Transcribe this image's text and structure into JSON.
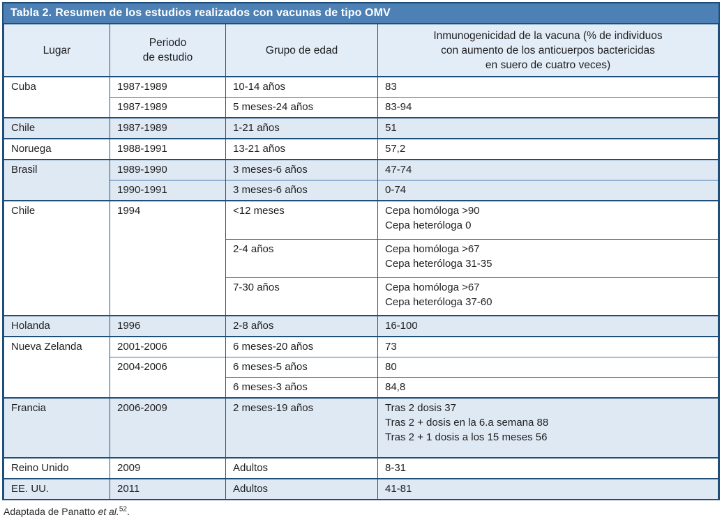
{
  "title": {
    "label": "Tabla 2.",
    "text": "Resumen de los estudios realizados con vacunas de tipo OMV"
  },
  "header": {
    "lugar": "Lugar",
    "periodo": "Periodo\nde estudio",
    "grupo": "Grupo de edad",
    "inmunogenicidad": "Inmunogenicidad de la vacuna (% de individuos\ncon aumento de los anticuerpos bactericidas\nen suero de cuatro veces)"
  },
  "rows": [
    {
      "lugar": "Cuba",
      "periodo": "1987-1989",
      "grupo": "10-14 años",
      "inmunogenicidad": "83"
    },
    {
      "periodo": "1987-1989",
      "grupo": "5 meses-24 años",
      "inmunogenicidad": "83-94"
    },
    {
      "lugar": "Chile",
      "periodo": "1987-1989",
      "grupo": "1-21 años",
      "inmunogenicidad": "51"
    },
    {
      "lugar": "Noruega",
      "periodo": "1988-1991",
      "grupo": "13-21 años",
      "inmunogenicidad": "57,2"
    },
    {
      "lugar": "Brasil",
      "periodo": "1989-1990",
      "grupo": "3 meses-6 años",
      "inmunogenicidad": "47-74"
    },
    {
      "periodo": "1990-1991",
      "grupo": "3 meses-6 años",
      "inmunogenicidad": "0-74"
    },
    {
      "lugar": "Chile",
      "periodo": "1994",
      "grupo": "<12 meses",
      "inmunogenicidad": "Cepa homóloga >90\nCepa heteróloga 0"
    },
    {
      "grupo": "2-4 años",
      "inmunogenicidad": "Cepa homóloga >67\nCepa heteróloga 31-35"
    },
    {
      "grupo": "7-30 años",
      "inmunogenicidad": "Cepa homóloga >67\nCepa heteróloga 37-60"
    },
    {
      "lugar": "Holanda",
      "periodo": "1996",
      "grupo": "2-8 años",
      "inmunogenicidad": "16-100"
    },
    {
      "lugar": "Nueva Zelanda",
      "periodo": "2001-2006",
      "grupo": "6 meses-20 años",
      "inmunogenicidad": "73"
    },
    {
      "periodo": "2004-2006",
      "grupo": "6 meses-5 años",
      "inmunogenicidad": "80"
    },
    {
      "grupo": "6 meses-3 años",
      "inmunogenicidad": "84,8"
    },
    {
      "lugar": "Francia",
      "periodo": "2006-2009",
      "grupo": "2 meses-19 años",
      "inmunogenicidad": "Tras 2 dosis 37\nTras 2 + dosis en la 6.a semana 88\nTras 2 + 1 dosis a los 15 meses 56"
    },
    {
      "lugar": "Reino Unido",
      "periodo": "2009",
      "grupo": "Adultos",
      "inmunogenicidad": "8-31"
    },
    {
      "lugar": "EE. UU.",
      "periodo": "2011",
      "grupo": "Adultos",
      "inmunogenicidad": "41-81"
    }
  ],
  "footer": {
    "prefix": "Adaptada de Panatto ",
    "italic": "et al.",
    "superscript": "52",
    "suffix": "."
  },
  "colors": {
    "title_bar": "#4D81B6",
    "dark_border": "#1E4E79",
    "header_bg": "#E3EDF8",
    "row_shade": "#DFE9F4"
  }
}
